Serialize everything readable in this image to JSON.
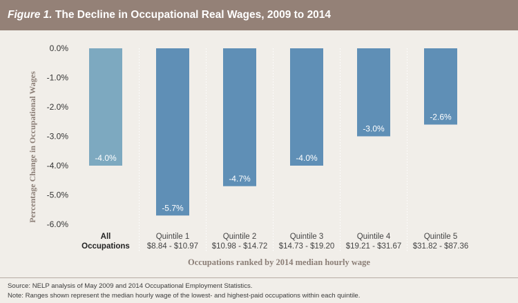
{
  "header": {
    "figure_label": "Figure 1.",
    "title": "The Decline in Occupational Real Wages, 2009 to 2014"
  },
  "chart_data": {
    "type": "bar",
    "categories": [
      [
        "All",
        "Occupations"
      ],
      [
        "Quintile 1",
        "$8.84 - $10.97"
      ],
      [
        "Quintile 2",
        "$10.98 - $14.72"
      ],
      [
        "Quintile 3",
        "$14.73 - $19.20"
      ],
      [
        "Quintile 4",
        "$19.21 - $31.67"
      ],
      [
        "Quintile 5",
        "$31.82 - $87.36"
      ]
    ],
    "values": [
      -4.0,
      -5.7,
      -4.7,
      -4.0,
      -3.0,
      -2.6
    ],
    "data_labels": [
      "-4.0%",
      "-5.7%",
      "-4.7%",
      "-4.0%",
      "-3.0%",
      "-2.6%"
    ],
    "ylim": [
      -6.0,
      0.0
    ],
    "yticks": [
      0.0,
      -1.0,
      -2.0,
      -3.0,
      -4.0,
      -5.0,
      -6.0
    ],
    "ytick_labels": [
      "0.0%",
      "-1.0%",
      "-2.0%",
      "-3.0%",
      "-4.0%",
      "-5.0%",
      "-6.0%"
    ],
    "ylabel": "Percentage Change in Occupational Wages",
    "xlabel": "Occupations ranked by 2014 median hourly wage",
    "grid": false,
    "colors": {
      "highlight": "#7da9c0",
      "bars": "#5f8fb6"
    }
  },
  "footer": {
    "source": "Source: NELP analysis of May 2009 and 2014 Occupational Employment Statistics.",
    "note": "Note: Ranges shown represent the median hourly wage of the lowest- and highest-paid occupations within each quintile."
  }
}
